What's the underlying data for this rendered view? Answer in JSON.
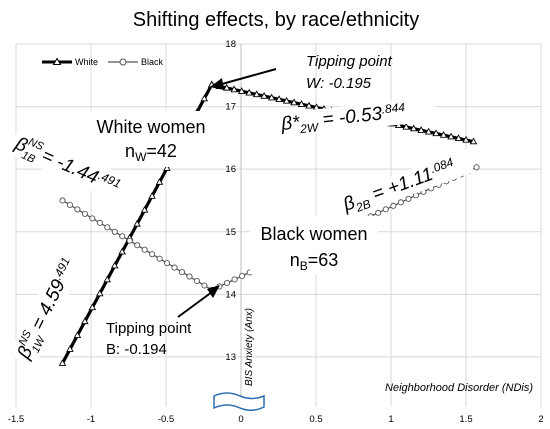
{
  "chart_data": {
    "type": "line",
    "title": "Shifting effects, by race/ethnicity",
    "xlabel": "Neighborhood Disorder (NDis)",
    "ylabel": "BIS Anxiety (Anx)",
    "xlim": [
      -1.5,
      2
    ],
    "ylim": [
      12.2,
      18
    ],
    "xticks": [
      "-1.5",
      "-1",
      "-0.5",
      "0",
      "0.5",
      "1",
      "1.5",
      "2"
    ],
    "yticks": [
      "13",
      "14",
      "15",
      "16",
      "17",
      "18"
    ],
    "grid": true,
    "legend_position": "top-left",
    "series": [
      {
        "name": "White",
        "color": "#000000",
        "marker": "triangle",
        "segments": [
          {
            "x": [
              -1.19,
              -0.195
            ],
            "y": [
              12.9,
              17.35
            ]
          },
          {
            "x": [
              -0.195,
              1.55
            ],
            "y": [
              17.35,
              16.44
            ]
          }
        ]
      },
      {
        "name": "Black",
        "color": "#555555",
        "marker": "circle",
        "segments": [
          {
            "x": [
              -1.19,
              -0.194
            ],
            "y": [
              15.5,
              14.07
            ]
          },
          {
            "x": [
              -0.194,
              1.57
            ],
            "y": [
              14.07,
              16.03
            ]
          }
        ]
      }
    ],
    "annotations": {
      "tipping_white": [
        "Tipping point",
        "W: -0.195"
      ],
      "tipping_black": [
        "Tipping point",
        "B: -0.194"
      ],
      "white_group": {
        "label": "White women",
        "n_prefix": "n",
        "n_sub": "W",
        "n_value": "=42"
      },
      "black_group": {
        "label": "Black women",
        "n_prefix": "n",
        "n_sub": "B",
        "n_value": "=63"
      },
      "beta_white_post": {
        "sym": "β*",
        "sub": "2W",
        "eq": " = -0.53",
        "p": ".844"
      },
      "beta_black_post": {
        "sym": "β",
        "sub": "2B",
        "eq": " = +1.11",
        "p": ".084"
      },
      "beta_black_pre": {
        "sym": "β",
        "sup": "NS",
        "sub": "1B",
        "eq": " = -1.44",
        "p": ".491"
      },
      "beta_white_pre": {
        "sym": "β",
        "sup": "NS",
        "sub": "1W",
        "eq": " = 4.59",
        "p": ".491"
      }
    }
  }
}
